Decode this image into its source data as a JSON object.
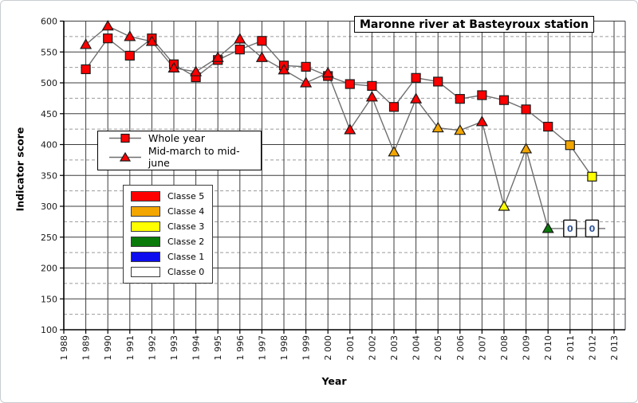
{
  "title": "Maronne river at Basteyroux station",
  "axes": {
    "x_label": "Year",
    "y_label": "Indicator score",
    "y_ticks": [
      600,
      550,
      500,
      450,
      400,
      350,
      300,
      250,
      200,
      150,
      100
    ],
    "y_minor_ticks": [
      575,
      525,
      475,
      425,
      375,
      325,
      275,
      225,
      175,
      125
    ],
    "x_tick_years": [
      1988,
      1989,
      1990,
      1991,
      1992,
      1993,
      1994,
      1995,
      1996,
      1997,
      1998,
      1999,
      2000,
      2001,
      2002,
      2003,
      2004,
      2005,
      2006,
      2007,
      2008,
      2009,
      2010,
      2011,
      2012,
      2013
    ],
    "x_tick_label_format": "1 988"
  },
  "series_legend": [
    {
      "label": "Whole year",
      "marker": "square",
      "marker_color": "#fe0000"
    },
    {
      "label": "Mid-march to mid-june",
      "marker": "triangle",
      "marker_color": "#fe0000"
    }
  ],
  "class_legend": {
    "items": [
      {
        "classe": 5,
        "label": "Classe 5",
        "color": "#fe0000"
      },
      {
        "classe": 4,
        "label": "Classe 4",
        "color": "#f3a600"
      },
      {
        "classe": 3,
        "label": "Classe 3",
        "color": "#ffff00"
      },
      {
        "classe": 2,
        "label": "Classe 2",
        "color": "#0a7a0a"
      },
      {
        "classe": 1,
        "label": "Classe 1",
        "color": "#0c0cee"
      },
      {
        "classe": 0,
        "label": "Classe 0",
        "color": "#ffffff"
      }
    ]
  },
  "style": {
    "line_color": "#6f6f6f",
    "grid_major_color": "#3d3d3d",
    "grid_minor_color": "#9b9b9b",
    "axis_color": "#000000",
    "tick_label_color": "#1a1a1a",
    "zero_label_color": "#2f5496"
  },
  "chart_data": {
    "type": "line",
    "title": "Maronne river at Basteyroux station",
    "xlabel": "Year",
    "ylabel": "Indicator score",
    "xlim": [
      1988,
      2013
    ],
    "ylim": [
      100,
      600
    ],
    "grid": true,
    "legend_position": "upper-left-inside",
    "series": [
      {
        "name": "Whole year",
        "marker": "square",
        "points": [
          {
            "year": 1989,
            "value": 522,
            "classe": 5
          },
          {
            "year": 1990,
            "value": 572,
            "classe": 5
          },
          {
            "year": 1991,
            "value": 544,
            "classe": 5
          },
          {
            "year": 1992,
            "value": 572,
            "classe": 5
          },
          {
            "year": 1993,
            "value": 530,
            "classe": 5
          },
          {
            "year": 1994,
            "value": 509,
            "classe": 5
          },
          {
            "year": 1995,
            "value": 537,
            "classe": 5
          },
          {
            "year": 1996,
            "value": 554,
            "classe": 5
          },
          {
            "year": 1997,
            "value": 568,
            "classe": 5
          },
          {
            "year": 1998,
            "value": 528,
            "classe": 5
          },
          {
            "year": 1999,
            "value": 526,
            "classe": 5
          },
          {
            "year": 2000,
            "value": 511,
            "classe": 5
          },
          {
            "year": 2001,
            "value": 498,
            "classe": 5
          },
          {
            "year": 2002,
            "value": 495,
            "classe": 5
          },
          {
            "year": 2003,
            "value": 461,
            "classe": 5
          },
          {
            "year": 2004,
            "value": 508,
            "classe": 5
          },
          {
            "year": 2005,
            "value": 502,
            "classe": 5
          },
          {
            "year": 2006,
            "value": 474,
            "classe": 5
          },
          {
            "year": 2007,
            "value": 480,
            "classe": 5
          },
          {
            "year": 2008,
            "value": 472,
            "classe": 5
          },
          {
            "year": 2009,
            "value": 457,
            "classe": 5
          },
          {
            "year": 2010,
            "value": 429,
            "classe": 5
          },
          {
            "year": 2011,
            "value": 399,
            "classe": 4
          },
          {
            "year": 2012,
            "value": 348,
            "classe": 3
          }
        ]
      },
      {
        "name": "Mid-march to mid-june",
        "marker": "triangle",
        "zero_display_level": 264,
        "points": [
          {
            "year": 1989,
            "value": 562,
            "classe": 5
          },
          {
            "year": 1990,
            "value": 592,
            "classe": 5
          },
          {
            "year": 1991,
            "value": 575,
            "classe": 5
          },
          {
            "year": 1992,
            "value": 567,
            "classe": 5
          },
          {
            "year": 1993,
            "value": 524,
            "classe": 5
          },
          {
            "year": 1994,
            "value": 518,
            "classe": 5
          },
          {
            "year": 1995,
            "value": 541,
            "classe": 5
          },
          {
            "year": 1996,
            "value": 571,
            "classe": 5
          },
          {
            "year": 1997,
            "value": 541,
            "classe": 5
          },
          {
            "year": 1998,
            "value": 521,
            "classe": 5
          },
          {
            "year": 1999,
            "value": 500,
            "classe": 5
          },
          {
            "year": 2000,
            "value": 516,
            "classe": 5
          },
          {
            "year": 2001,
            "value": 424,
            "classe": 5
          },
          {
            "year": 2002,
            "value": 477,
            "classe": 5
          },
          {
            "year": 2003,
            "value": 388,
            "classe": 4
          },
          {
            "year": 2004,
            "value": 474,
            "classe": 5
          },
          {
            "year": 2005,
            "value": 427,
            "classe": 4
          },
          {
            "year": 2006,
            "value": 423,
            "classe": 4
          },
          {
            "year": 2007,
            "value": 437,
            "classe": 5
          },
          {
            "year": 2008,
            "value": 300,
            "classe": 3
          },
          {
            "year": 2009,
            "value": 393,
            "classe": 4
          },
          {
            "year": 2010,
            "value": 264,
            "classe": 2
          },
          {
            "year": 2011,
            "value": 0,
            "classe": 0,
            "label": "0"
          },
          {
            "year": 2012,
            "value": 0,
            "classe": 0,
            "label": "0"
          }
        ]
      }
    ]
  }
}
